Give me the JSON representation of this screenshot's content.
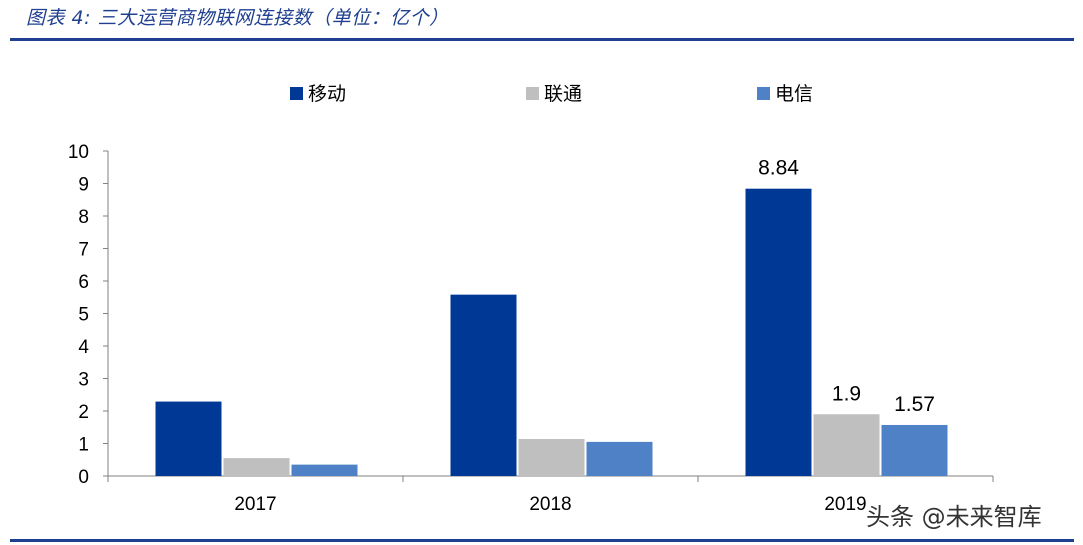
{
  "figure": {
    "title": "图表 4:  三大运营商物联网连接数（单位：亿个）"
  },
  "watermark": "头条 @未来智库",
  "chart_data": {
    "type": "bar",
    "categories": [
      "2017",
      "2018",
      "2019"
    ],
    "series": [
      {
        "name": "移动",
        "color": "#003896",
        "values": [
          2.29,
          5.58,
          8.84
        ]
      },
      {
        "name": "联通",
        "color": "#bfbfbf",
        "values": [
          0.55,
          1.14,
          1.9
        ]
      },
      {
        "name": "电信",
        "color": "#4f81c7",
        "values": [
          0.35,
          1.05,
          1.57
        ]
      }
    ],
    "data_labels": [
      {
        "series": 0,
        "index": 2,
        "text": "8.84"
      },
      {
        "series": 1,
        "index": 2,
        "text": "1.9"
      },
      {
        "series": 2,
        "index": 2,
        "text": "1.57"
      }
    ],
    "ylim": [
      0,
      10
    ],
    "yticks": [
      0,
      1,
      2,
      3,
      4,
      5,
      6,
      7,
      8,
      9,
      10
    ],
    "legend": "top",
    "grid": false
  }
}
